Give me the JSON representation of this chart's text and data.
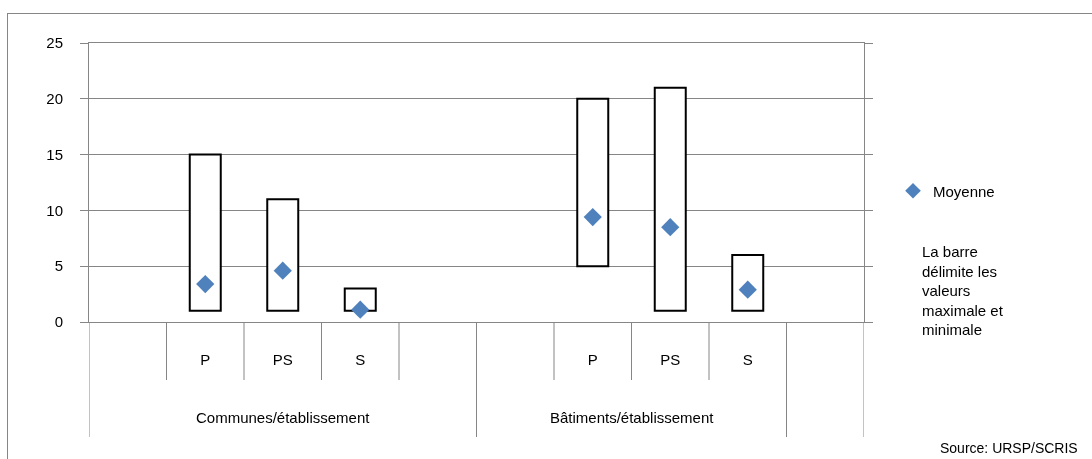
{
  "chart_data": {
    "type": "bar",
    "categories": [
      null,
      "P",
      "PS",
      "S",
      null,
      null,
      "P",
      "PS",
      "S",
      null
    ],
    "series": [
      {
        "type": "bar",
        "color": "#000000",
        "base": [
          null,
          1,
          1,
          1,
          null,
          null,
          5,
          1,
          1,
          null
        ],
        "values": [
          null,
          14,
          10,
          2,
          null,
          null,
          15,
          20,
          5,
          null
        ]
      },
      {
        "type": "scatter",
        "name": "Moyenne",
        "color": "#4f81bd",
        "marker": "diamond",
        "values": [
          null,
          3.4,
          4.6,
          1.1,
          null,
          null,
          9.4,
          8.5,
          2.9,
          null
        ]
      }
    ],
    "ylim": [
      0,
      25
    ],
    "yticks": [
      0,
      5,
      10,
      15,
      20,
      25
    ],
    "grid": "y",
    "legend": "right",
    "annotations": [
      "Communes/établissement",
      "Bâtiments/établissement",
      "La barre délimite les valeurs maximale et minimale",
      "Source: URSP/SCRIS"
    ]
  }
}
